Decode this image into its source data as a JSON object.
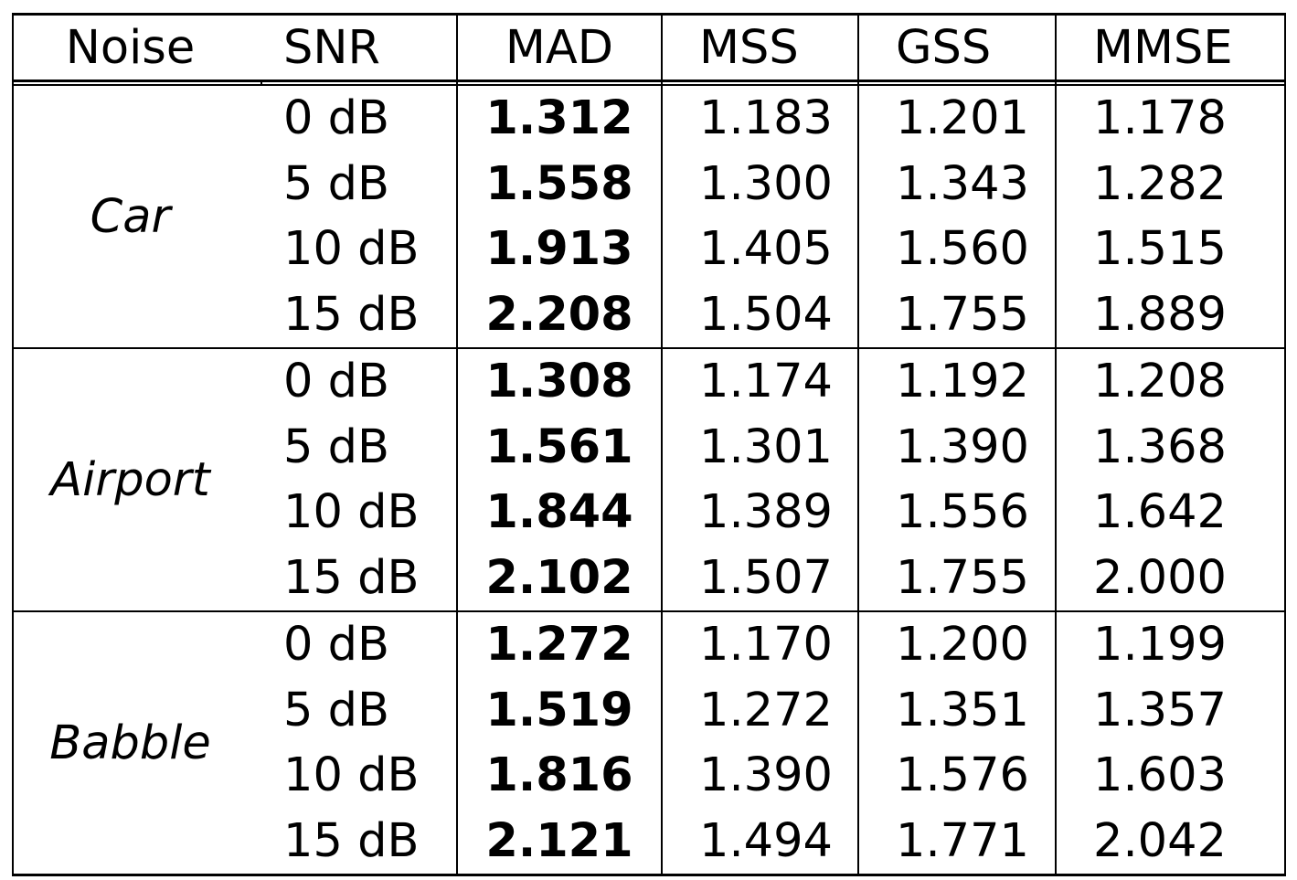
{
  "chart_data": {
    "type": "table",
    "columns": [
      "Noise",
      "SNR",
      "MAD",
      "MSS",
      "GSS",
      "MMSE"
    ],
    "bold_column": "MAD",
    "groups": [
      {
        "noise": "Car",
        "rows": [
          {
            "snr": "0 dB",
            "values": [
              "1.312",
              "1.183",
              "1.201",
              "1.178"
            ]
          },
          {
            "snr": "5 dB",
            "values": [
              "1.558",
              "1.300",
              "1.343",
              "1.282"
            ]
          },
          {
            "snr": "10 dB",
            "values": [
              "1.913",
              "1.405",
              "1.560",
              "1.515"
            ]
          },
          {
            "snr": "15 dB",
            "values": [
              "2.208",
              "1.504",
              "1.755",
              "1.889"
            ]
          }
        ]
      },
      {
        "noise": "Airport",
        "rows": [
          {
            "snr": "0 dB",
            "values": [
              "1.308",
              "1.174",
              "1.192",
              "1.208"
            ]
          },
          {
            "snr": "5 dB",
            "values": [
              "1.561",
              "1.301",
              "1.390",
              "1.368"
            ]
          },
          {
            "snr": "10 dB",
            "values": [
              "1.844",
              "1.389",
              "1.556",
              "1.642"
            ]
          },
          {
            "snr": "15 dB",
            "values": [
              "2.102",
              "1.507",
              "1.755",
              "2.000"
            ]
          }
        ]
      },
      {
        "noise": "Babble",
        "rows": [
          {
            "snr": "0 dB",
            "values": [
              "1.272",
              "1.170",
              "1.200",
              "1.199"
            ]
          },
          {
            "snr": "5 dB",
            "values": [
              "1.519",
              "1.272",
              "1.351",
              "1.357"
            ]
          },
          {
            "snr": "10 dB",
            "values": [
              "1.816",
              "1.390",
              "1.576",
              "1.603"
            ]
          },
          {
            "snr": "15 dB",
            "values": [
              "2.121",
              "1.494",
              "1.771",
              "2.042"
            ]
          }
        ]
      }
    ]
  }
}
